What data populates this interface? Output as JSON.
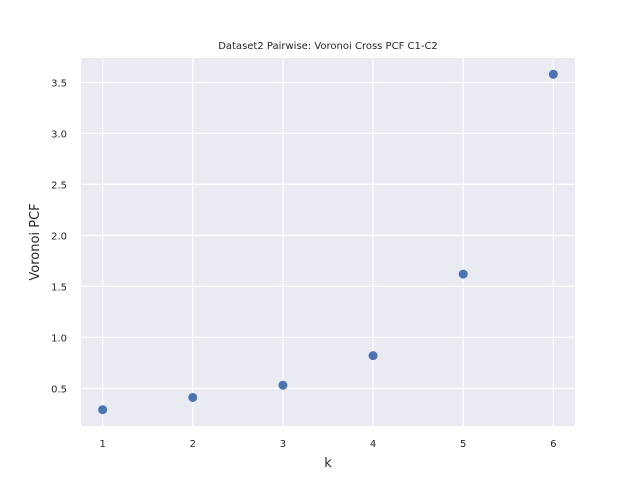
{
  "chart_data": {
    "type": "scatter",
    "title": "Dataset2 Pairwise: Voronoi Cross PCF C1-C2",
    "xlabel": "k",
    "ylabel": "Voronoi PCF",
    "x": [
      1,
      2,
      3,
      4,
      5,
      6
    ],
    "y": [
      0.29,
      0.41,
      0.53,
      0.82,
      1.62,
      3.58
    ],
    "xlim": [
      0.76,
      6.24
    ],
    "ylim": [
      0.13,
      3.74
    ],
    "xticks": [
      "1",
      "2",
      "3",
      "4",
      "5",
      "6"
    ],
    "yticks": [
      "0.5",
      "1.0",
      "1.5",
      "2.0",
      "2.5",
      "3.0",
      "3.5"
    ],
    "grid": true,
    "background_color": "#eaeaf2",
    "point_color": "#4c72b0"
  }
}
